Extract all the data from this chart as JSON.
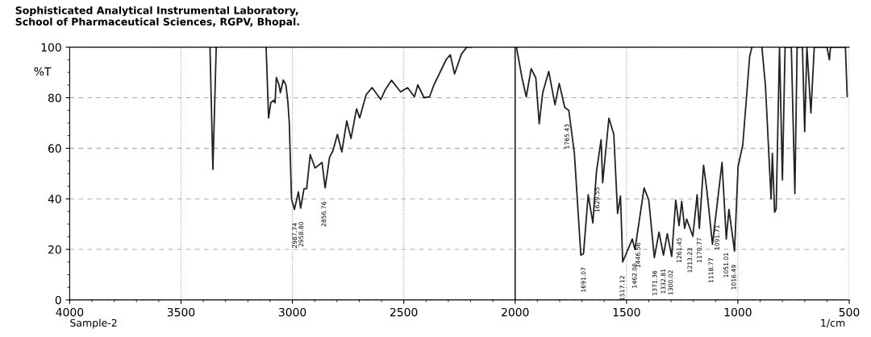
{
  "chart_data": {
    "type": "line",
    "title": "Sophisticated Analytical Instrumental Laboratory,\nSchool of Pharmaceutical Sciences, RGPV, Bhopal.",
    "xlabel": "1/cm",
    "ylabel": "%T",
    "xlim": [
      4000,
      500
    ],
    "xticks": [
      4000,
      3500,
      3000,
      2500,
      2000,
      1500,
      1000,
      500
    ],
    "ylim": [
      0,
      100
    ],
    "yticks": [
      0,
      20,
      40,
      60,
      80,
      100
    ],
    "grid": true,
    "legend": false,
    "marker": "none",
    "line_style": "solid",
    "ref_lines": [
      {
        "axis": "x",
        "value": 2000,
        "label": null,
        "color": "#222222",
        "line_style": "solid"
      }
    ],
    "series": [
      {
        "color": "#222222",
        "x": [
          3370,
          3357,
          3342,
          3330,
          3118,
          3107,
          3097,
          3084,
          3078,
          3072,
          3060,
          3054,
          3041,
          3029,
          3020,
          3014,
          3004,
          2991,
          2973,
          2963,
          2948,
          2936,
          2920,
          2898,
          2867,
          2853,
          2833,
          2818,
          2798,
          2778,
          2756,
          2737,
          2712,
          2698,
          2669,
          2642,
          2603,
          2584,
          2555,
          2514,
          2483,
          2452,
          2437,
          2409,
          2384,
          2365,
          2309,
          2291,
          2272,
          2241,
          2217,
          2198,
          2190,
          1994,
          1969,
          1950,
          1928,
          1907,
          1892,
          1876,
          1849,
          1821,
          1802,
          1777,
          1759,
          1734,
          1705,
          1693,
          1672,
          1651,
          1635,
          1614,
          1607,
          1579,
          1557,
          1540,
          1527,
          1517,
          1474,
          1462,
          1421,
          1400,
          1375,
          1354,
          1334,
          1317,
          1297,
          1279,
          1264,
          1252,
          1239,
          1230,
          1202,
          1183,
          1173,
          1154,
          1139,
          1114,
          1071,
          1052,
          1040,
          1015,
          999,
          978,
          962,
          947,
          937,
          920,
          892,
          876,
          851,
          845,
          835,
          828,
          813,
          800,
          788,
          760,
          744,
          734,
          710,
          700,
          690,
          672,
          657,
          600,
          589,
          584,
          517,
          509
        ],
        "values": [
          100,
          51.7,
          100,
          null,
          100,
          72,
          78,
          79,
          78,
          88,
          85,
          82,
          87,
          85,
          78,
          70,
          40,
          35.8,
          42.7,
          36.3,
          44,
          44,
          57.5,
          52.2,
          54.4,
          44.3,
          56.5,
          59,
          65.5,
          58.6,
          70.8,
          63.9,
          75.6,
          72,
          81.2,
          84,
          79.3,
          83,
          86.9,
          82.3,
          84,
          80.4,
          85.1,
          80,
          80.4,
          85,
          95.2,
          97,
          89.4,
          97.3,
          100,
          100,
          null,
          100,
          87.8,
          80.4,
          91.5,
          87.8,
          69.7,
          82,
          90.4,
          77.2,
          85.7,
          76.1,
          75,
          58,
          17.7,
          18.3,
          41.6,
          30.5,
          50.6,
          63.4,
          46.4,
          71.9,
          65.5,
          34.2,
          41.1,
          15,
          24.1,
          19.9,
          44.3,
          39.5,
          16.7,
          26.8,
          17.7,
          26.2,
          17.2,
          39.5,
          29.4,
          39,
          28.3,
          32,
          25.2,
          41.6,
          28.3,
          53.3,
          43.2,
          22,
          54.4,
          24.1,
          35.8,
          19.3,
          52.8,
          61.3,
          79.3,
          96.3,
          100,
          null,
          100,
          84.6,
          40,
          58,
          34.7,
          36,
          100,
          47.5,
          100,
          100,
          42.1,
          100,
          100,
          66.6,
          100,
          74,
          100,
          100,
          95,
          100,
          100,
          80.4
        ]
      }
    ],
    "annotations": [
      {
        "text": "2987.74",
        "x": 2987.74,
        "y": 35.8
      },
      {
        "text": "2958.80",
        "x": 2958.8,
        "y": 36.3
      },
      {
        "text": "2856.76",
        "x": 2856.76,
        "y": 44.3
      },
      {
        "text": "1765.43",
        "x": 1765.43,
        "y": 75
      },
      {
        "text": "1691.07",
        "x": 1691.07,
        "y": 18.3
      },
      {
        "text": "1629.55",
        "x": 1629.55,
        "y": 50
      },
      {
        "text": "1517.12",
        "x": 1517.12,
        "y": 15
      },
      {
        "text": "1462.06",
        "x": 1462.06,
        "y": 19.9
      },
      {
        "text": "1446.56",
        "x": 1446.56,
        "y": 28
      },
      {
        "text": "1371.36",
        "x": 1371.36,
        "y": 17
      },
      {
        "text": "1332.81",
        "x": 1332.81,
        "y": 17.7
      },
      {
        "text": "1300.02",
        "x": 1300.02,
        "y": 17.2
      },
      {
        "text": "1261.45",
        "x": 1261.45,
        "y": 30
      },
      {
        "text": "1213.23",
        "x": 1213.23,
        "y": 26
      },
      {
        "text": "1170.77",
        "x": 1170.77,
        "y": 30
      },
      {
        "text": "1118.77",
        "x": 1118.77,
        "y": 22
      },
      {
        "text": "1091.71",
        "x": 1091.71,
        "y": 35
      },
      {
        "text": "1051.01",
        "x": 1051.01,
        "y": 24.1
      },
      {
        "text": "1016.49",
        "x": 1016.49,
        "y": 19.3
      },
      "Sample-2"
    ]
  }
}
